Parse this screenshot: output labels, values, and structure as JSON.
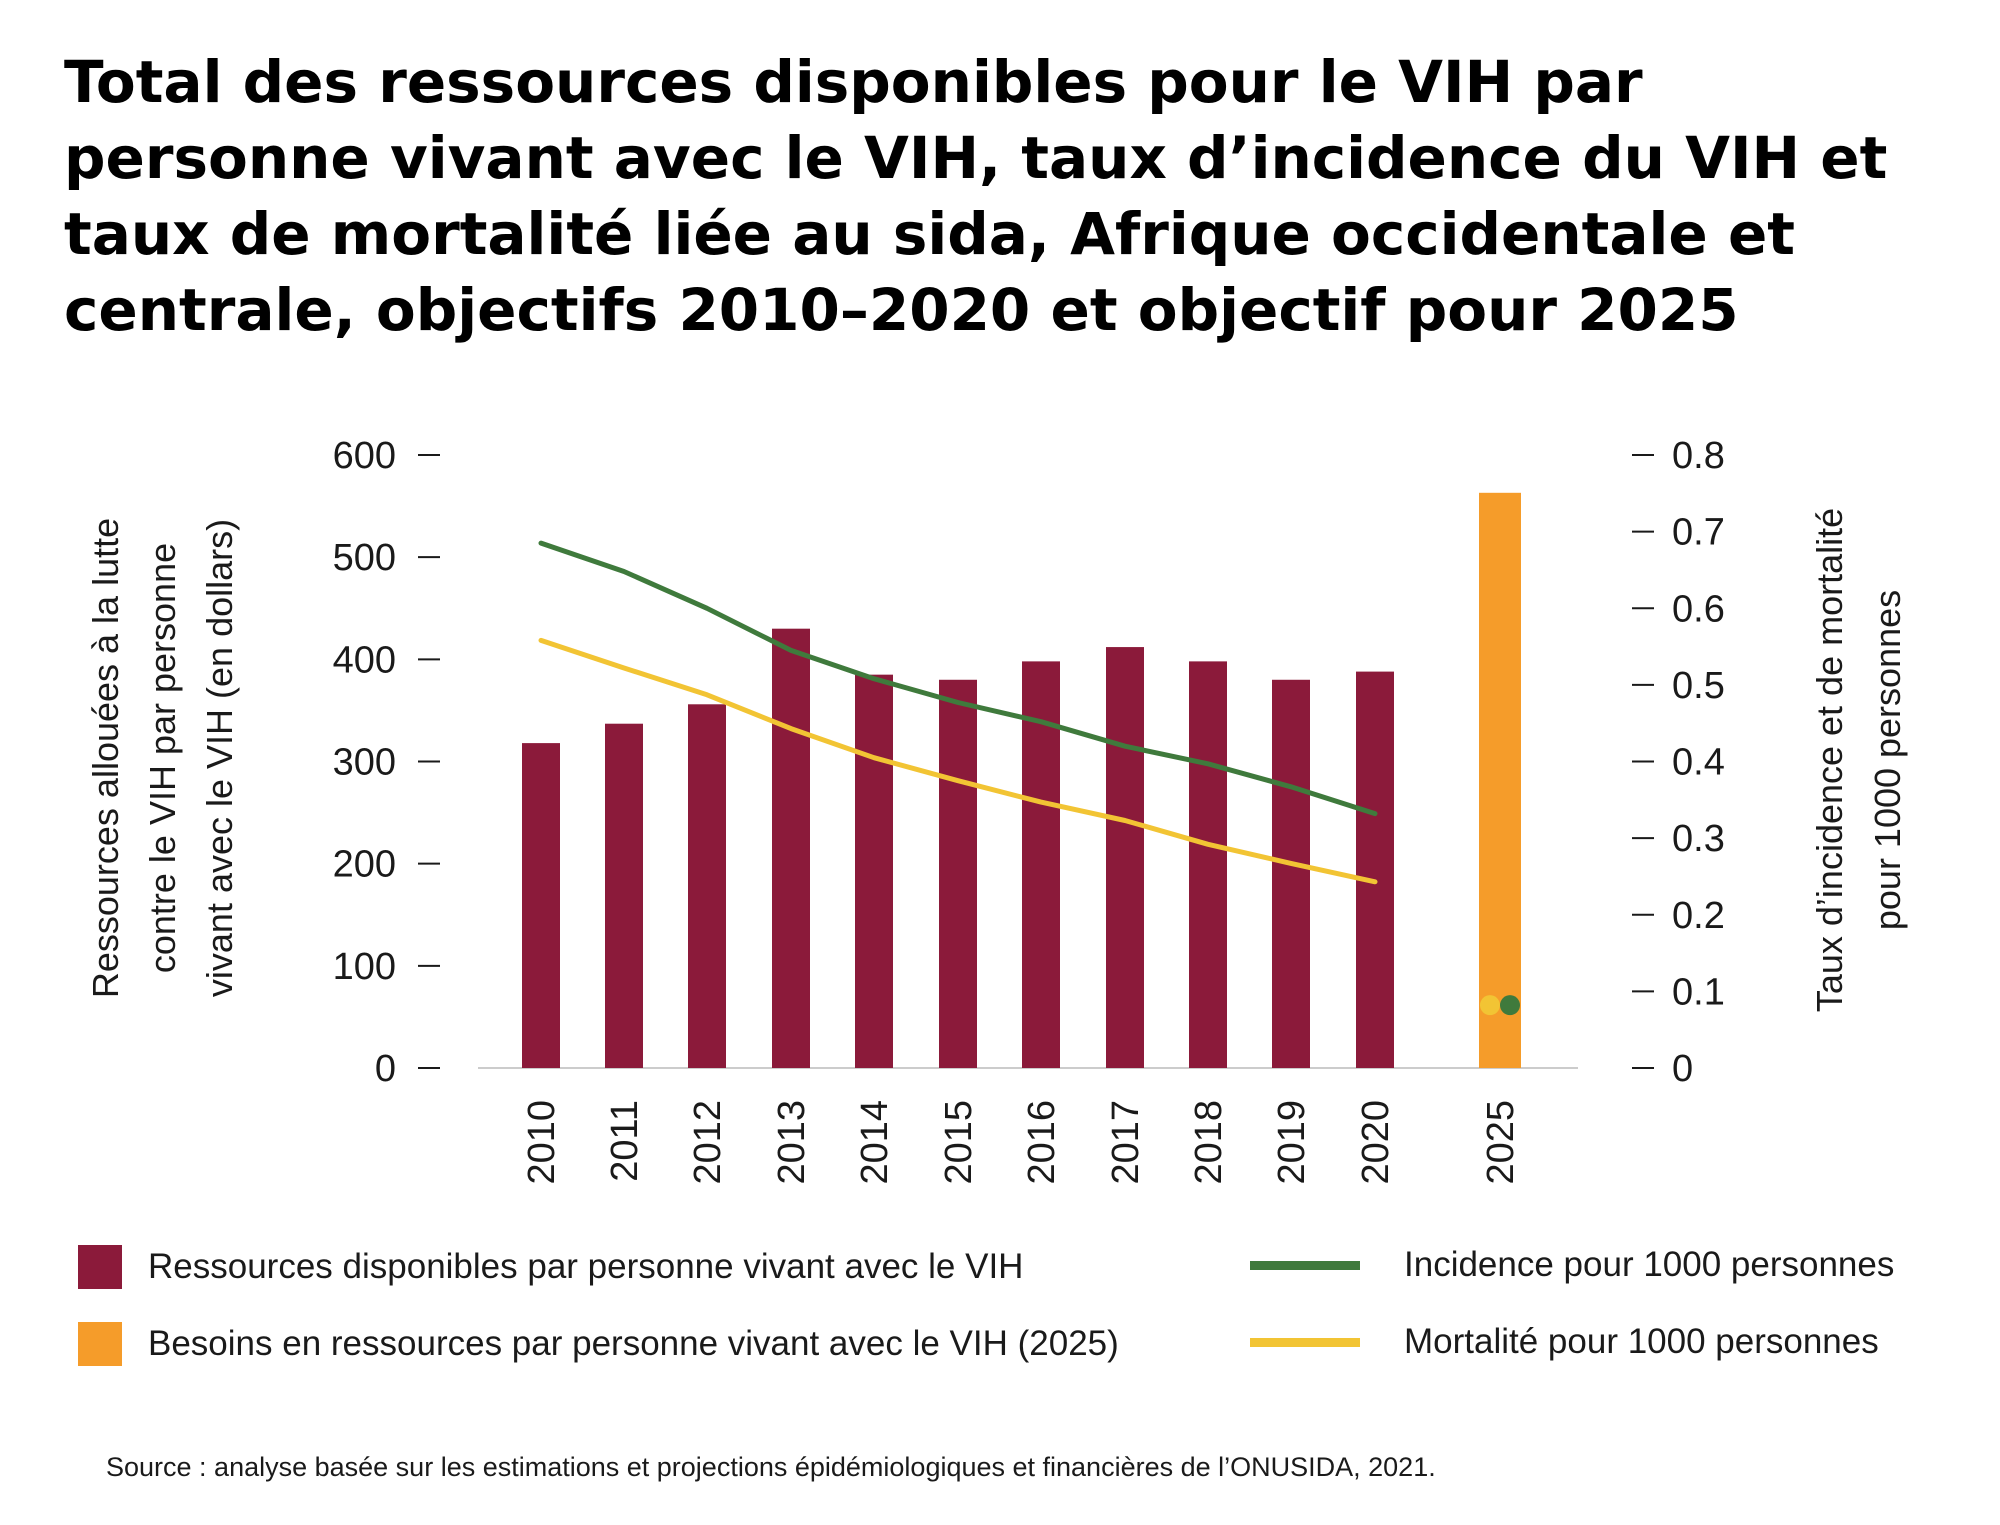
{
  "title": "Total des ressources disponibles pour le VIH par personne vivant avec le VIH, taux d’incidence du VIH et taux de mortalité liée au sida, Afrique occidentale et centrale, objectifs 2010–2020 et objectif pour 2025",
  "source": "Source : analyse basée sur les estimations et projections épidémiologiques et financières de l’ONUSIDA, 2021.",
  "legend": {
    "resources": "Ressources disponibles par personne vivant avec le VIH",
    "needs": "Besoins en ressources par personne vivant avec le VIH (2025)",
    "incidence": "Incidence pour 1000 personnes",
    "mortality": "Mortalité pour 1000 personnes"
  },
  "colors": {
    "resources": "#8b1a3a",
    "needs": "#f59c2a",
    "incidence": "#3f7a3c",
    "mortality": "#f2c434",
    "axis": "#1a1a1a",
    "baseline": "#cccccc"
  },
  "chart_data": {
    "type": "bar",
    "categories": [
      "2010",
      "2011",
      "2012",
      "2013",
      "2014",
      "2015",
      "2016",
      "2017",
      "2018",
      "2019",
      "2020",
      "2025"
    ],
    "y_left": {
      "label_lines": [
        "Ressources allouées à la lutte",
        "contre le VIH par personne",
        "vivant avec le VIH (en dollars)"
      ],
      "ylim": [
        0,
        600
      ],
      "ticks": [
        "0",
        "100",
        "200",
        "300",
        "400",
        "500",
        "600"
      ],
      "tick_values": [
        0,
        100,
        200,
        300,
        400,
        500,
        600
      ]
    },
    "y_right": {
      "label_lines": [
        "Taux d’incidence et de mortalité",
        "pour 1000 personnes"
      ],
      "ylim": [
        0,
        0.8
      ],
      "ticks": [
        "0",
        "0.1",
        "0.2",
        "0.3",
        "0.4",
        "0.5",
        "0.6",
        "0.7",
        "0.8"
      ],
      "tick_values": [
        0,
        0.1,
        0.2,
        0.3,
        0.4,
        0.5,
        0.6,
        0.7,
        0.8
      ]
    },
    "series": [
      {
        "name": "Ressources disponibles par personne vivant avec le VIH",
        "type": "bar",
        "axis": "left",
        "values": [
          318,
          337,
          356,
          430,
          385,
          380,
          398,
          412,
          398,
          380,
          388,
          null
        ]
      },
      {
        "name": "Besoins en ressources par personne vivant avec le VIH (2025)",
        "type": "bar",
        "axis": "left",
        "values": [
          null,
          null,
          null,
          null,
          null,
          null,
          null,
          null,
          null,
          null,
          null,
          563
        ]
      },
      {
        "name": "Incidence pour 1000 personnes",
        "type": "line",
        "axis": "right",
        "values": [
          0.685,
          0.648,
          0.6,
          0.545,
          0.508,
          0.477,
          0.452,
          0.42,
          0.397,
          0.367,
          0.332,
          null
        ]
      },
      {
        "name": "Mortalité pour 1000 personnes",
        "type": "line",
        "axis": "right",
        "values": [
          0.558,
          0.522,
          0.487,
          0.443,
          0.405,
          0.375,
          0.347,
          0.323,
          0.292,
          0.267,
          0.243,
          null
        ]
      }
    ],
    "target_2025": {
      "incidence": 0.082,
      "mortality": 0.082
    },
    "grid": false
  }
}
